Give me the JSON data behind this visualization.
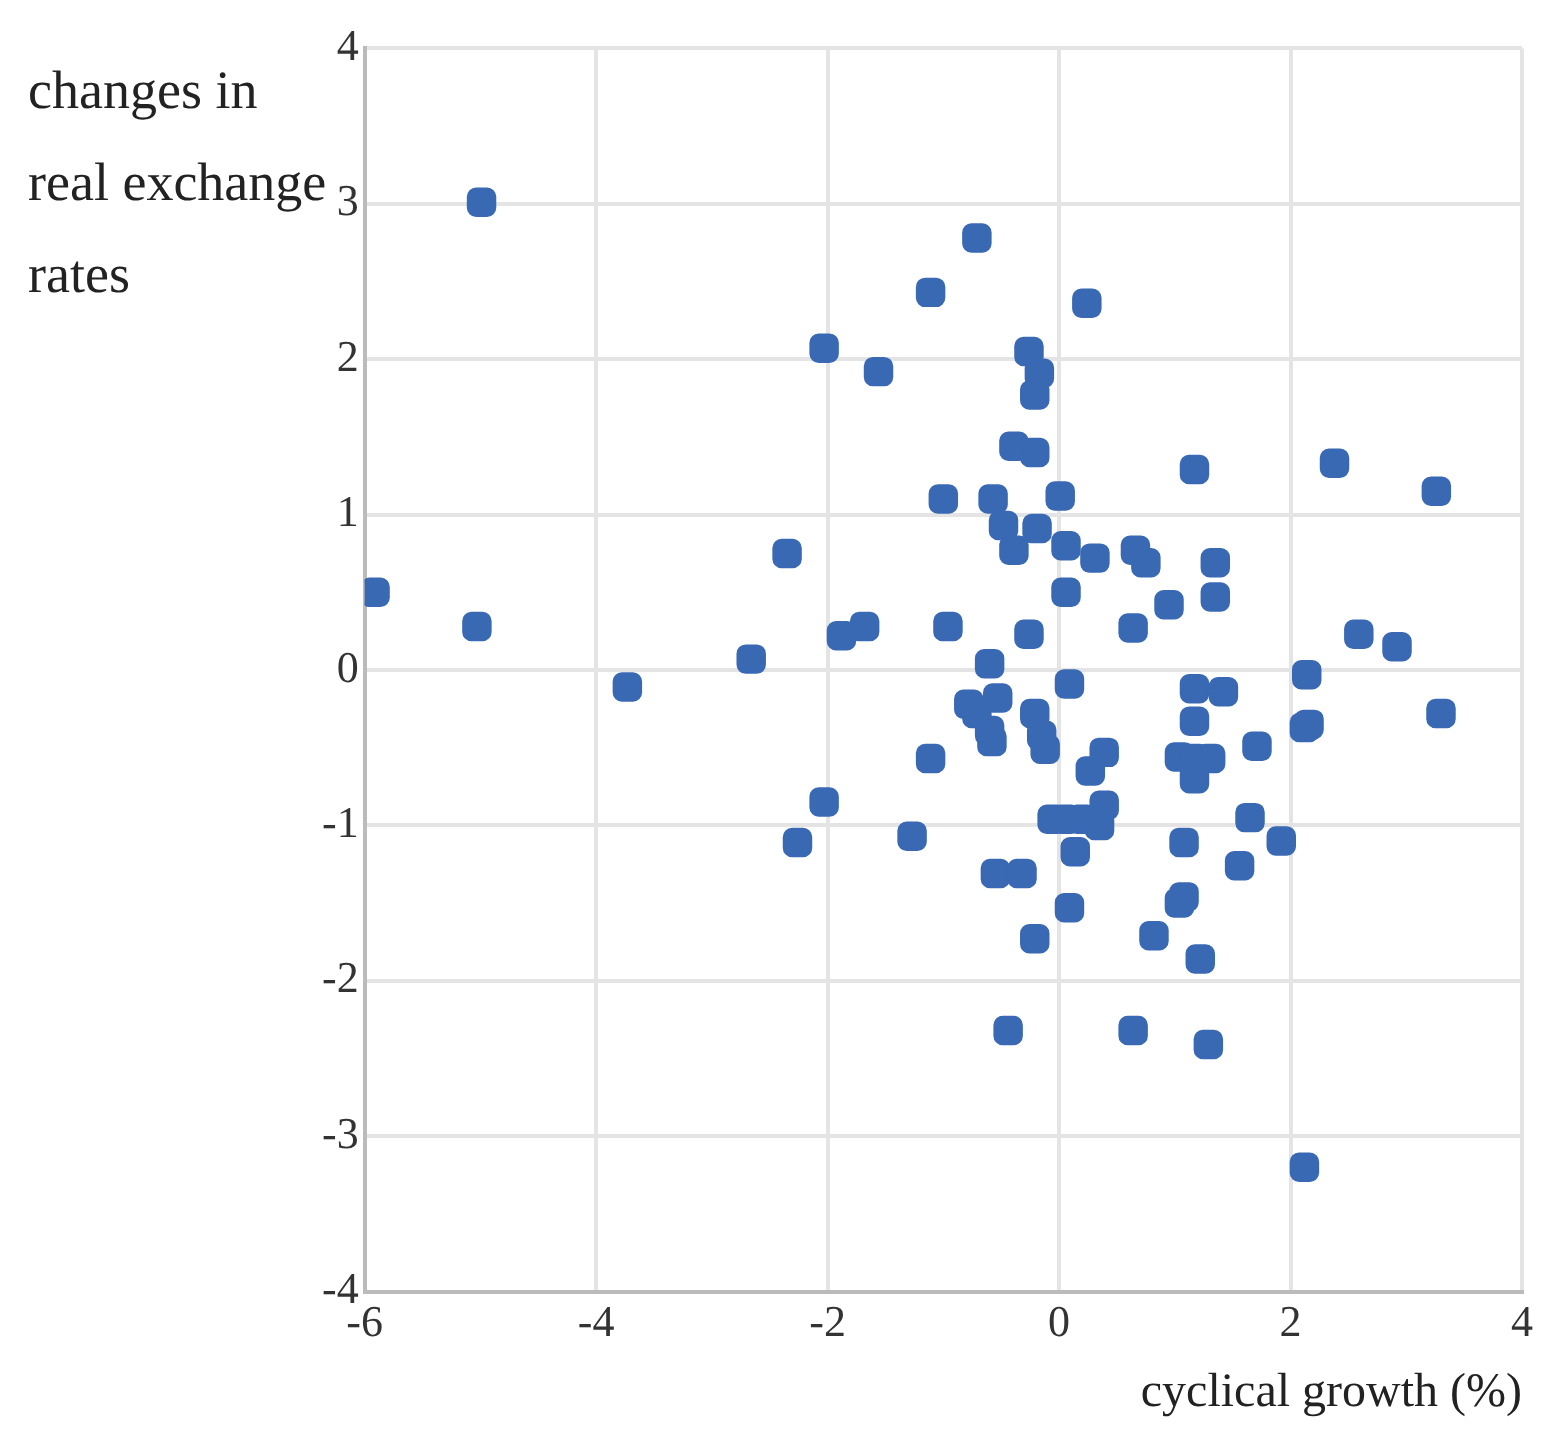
{
  "chart_data": {
    "type": "scatter",
    "xlabel": "cyclical growth (%)",
    "ylabel": "changes in real exchange rates",
    "marker": "square",
    "grid": true,
    "xlim": [
      -6,
      4
    ],
    "xticks": [
      -6,
      -4,
      -2,
      0,
      2,
      4
    ],
    "ylim": [
      -4,
      4
    ],
    "yticks": [
      -4,
      -3,
      -2,
      -1,
      0,
      1,
      2,
      3,
      4
    ],
    "series": [
      {
        "color": "#3a69b4",
        "x": [
          -5.91,
          -4.99,
          -5.03,
          -3.73,
          -2.66,
          -2.35,
          -2.26,
          -2.03,
          -2.03,
          -1.88,
          -1.68,
          -1.56,
          -1.27,
          -1.11,
          -1.11,
          -1.0,
          -0.96,
          -0.71,
          -0.78,
          -0.71,
          -0.6,
          -0.57,
          -0.6,
          -0.58,
          -0.53,
          -0.55,
          -0.48,
          -0.39,
          -0.39,
          -0.44,
          -0.32,
          -0.26,
          -0.26,
          -0.21,
          -0.17,
          -0.21,
          -0.21,
          -0.21,
          -0.19,
          -0.15,
          -0.12,
          -0.06,
          0.01,
          0.06,
          0.06,
          0.09,
          0.06,
          0.09,
          0.14,
          0.2,
          0.24,
          0.31,
          0.27,
          0.35,
          0.39,
          0.39,
          0.64,
          0.64,
          0.66,
          0.75,
          0.82,
          0.95,
          1.04,
          1.08,
          1.04,
          1.08,
          1.17,
          1.17,
          1.17,
          1.17,
          1.17,
          1.22,
          1.29,
          1.31,
          1.35,
          1.35,
          1.42,
          1.56,
          1.65,
          1.71,
          1.92,
          2.12,
          2.12,
          2.14,
          2.16,
          2.38,
          2.59,
          2.92,
          3.26,
          3.3
        ],
        "values": [
          0.5,
          3.01,
          0.28,
          -0.11,
          0.07,
          0.75,
          -1.11,
          -0.85,
          2.07,
          0.22,
          0.28,
          1.92,
          -1.07,
          2.43,
          -0.57,
          1.1,
          0.28,
          2.78,
          -0.22,
          -0.28,
          0.04,
          1.1,
          -0.39,
          -0.46,
          -0.18,
          -1.31,
          0.93,
          1.44,
          0.77,
          -2.32,
          -1.31,
          0.23,
          2.05,
          1.77,
          1.91,
          1.4,
          -0.28,
          -1.73,
          0.91,
          -0.42,
          -0.51,
          -0.96,
          1.12,
          0.5,
          0.8,
          -0.09,
          -0.96,
          -1.53,
          -1.17,
          -0.96,
          2.36,
          0.72,
          -0.65,
          -1.0,
          -0.53,
          -0.87,
          0.27,
          -2.32,
          0.77,
          0.69,
          -1.71,
          0.42,
          -0.56,
          -1.11,
          -1.5,
          -1.46,
          1.29,
          -0.12,
          -0.33,
          -0.57,
          -0.7,
          -1.86,
          -2.41,
          -0.57,
          0.69,
          0.47,
          -0.14,
          -1.26,
          -0.95,
          -0.49,
          -1.1,
          -0.37,
          -3.2,
          -0.03,
          -0.35,
          1.33,
          0.23,
          0.15,
          1.15,
          -0.28
        ]
      }
    ]
  }
}
